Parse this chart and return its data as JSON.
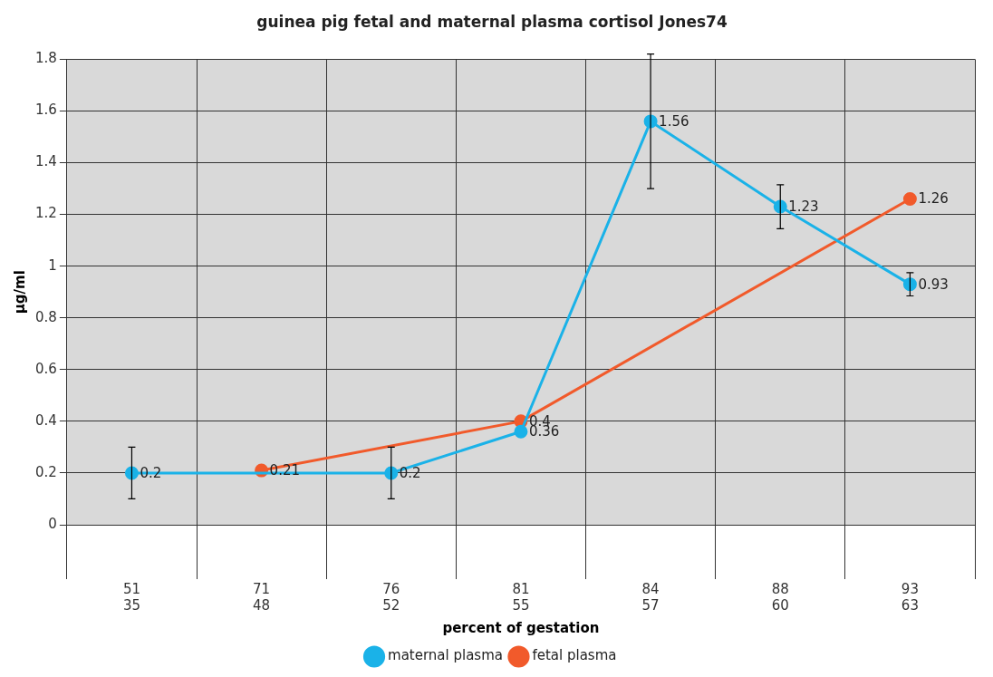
{
  "chart_data": {
    "type": "line",
    "title": "guinea pig fetal and maternal plasma cortisol Jones74",
    "xlabel": "percent of gestation",
    "ylabel": "µg/ml",
    "categories": [
      "51\n35",
      "71\n48",
      "76\n52",
      "81\n55",
      "84\n57",
      "88\n60",
      "93\n63"
    ],
    "series": [
      {
        "name": "maternal plasma",
        "color": "#1ab2e8",
        "values": [
          0.2,
          null,
          0.2,
          0.36,
          1.56,
          1.23,
          0.93
        ],
        "errors": [
          0.1,
          null,
          0.1,
          null,
          [
            1.3,
            1.82
          ],
          [
            1.145,
            1.315
          ],
          [
            0.885,
            0.975
          ]
        ]
      },
      {
        "name": "fetal plasma",
        "color": "#f15a2b",
        "values": [
          null,
          0.21,
          null,
          0.4,
          null,
          null,
          1.26
        ]
      }
    ],
    "ylim": [
      0,
      1.8
    ],
    "yticks": [
      0,
      0.2,
      0.4,
      0.6,
      0.8,
      1,
      1.2,
      1.4,
      1.6,
      1.8
    ],
    "grid": true,
    "legend": "bottom",
    "marker": "circle",
    "data_labels": true
  }
}
